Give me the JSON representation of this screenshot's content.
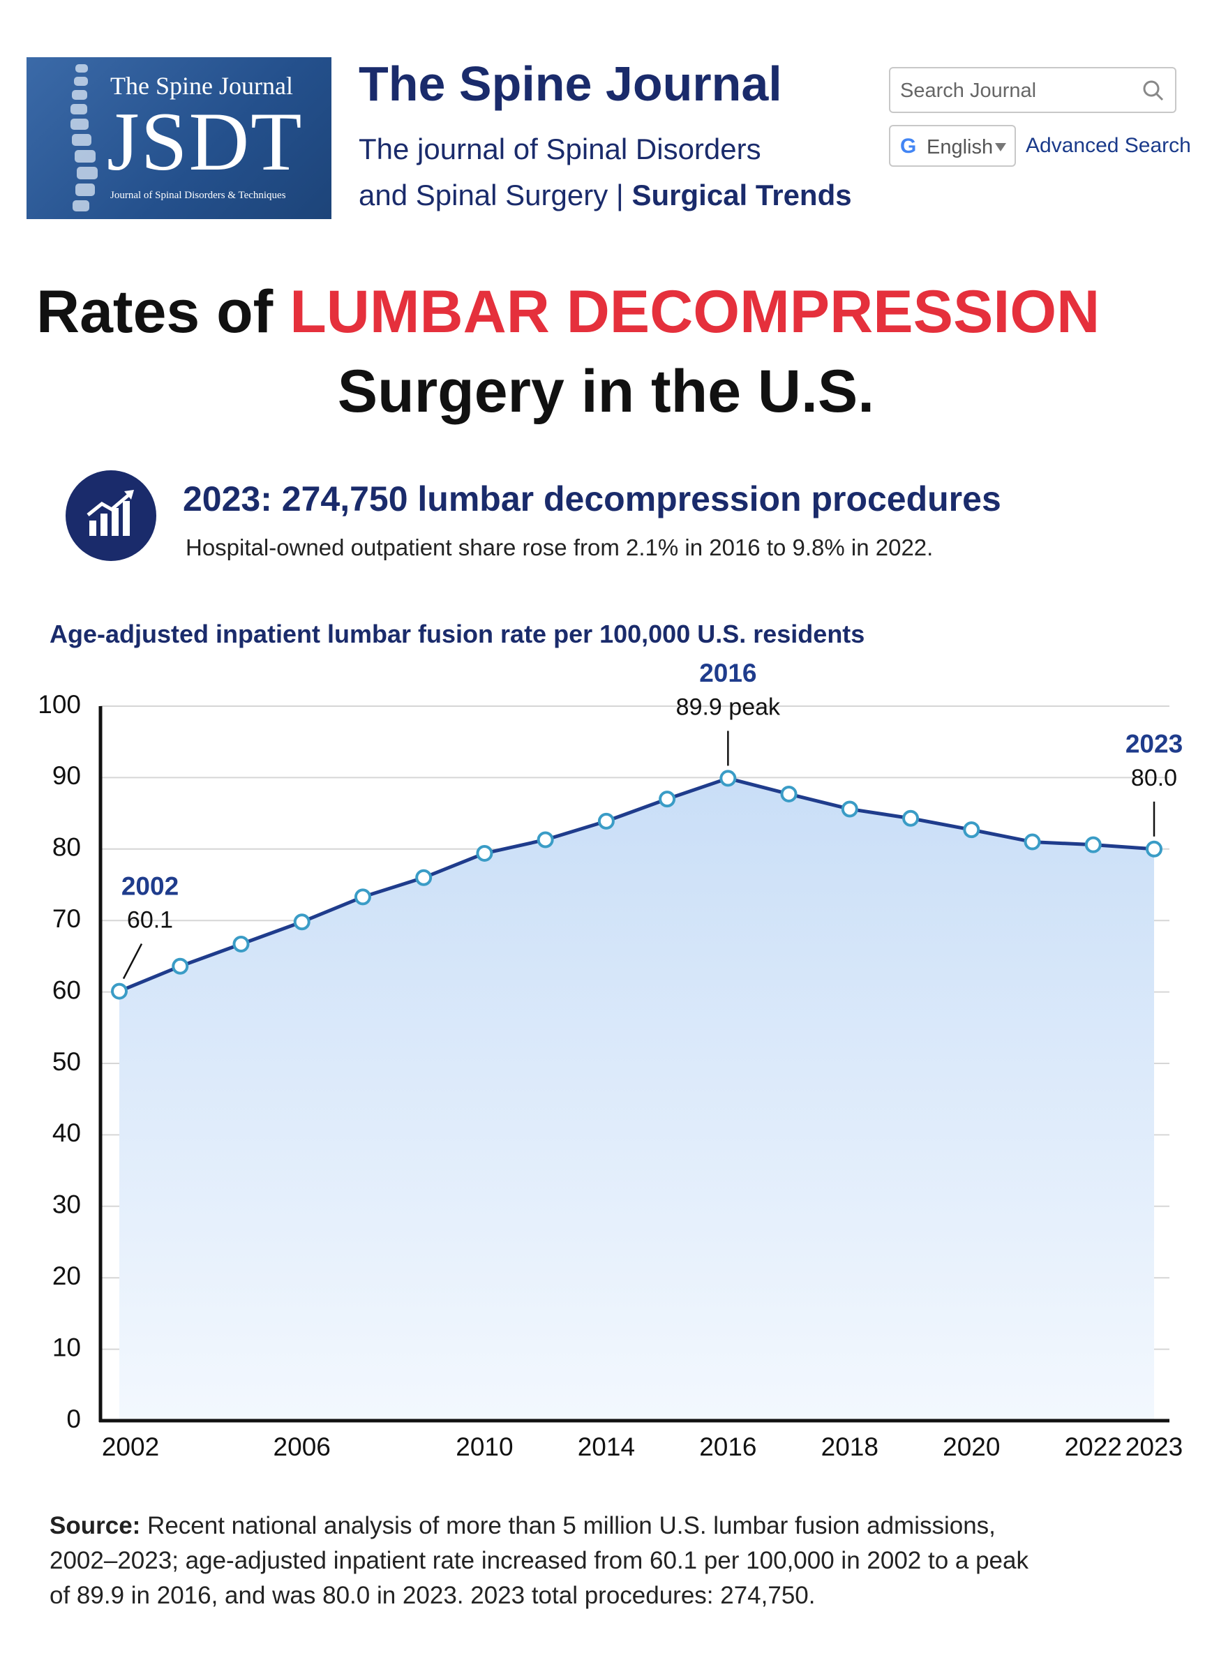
{
  "header": {
    "logo_top": "The Spine Journal",
    "logo_main": "JSDT",
    "logo_sub": "Journal of Spinal Disorders & Techniques",
    "title": "The Spine Journal",
    "subtitle_line1": "The journal of Spinal Disorders",
    "subtitle_line2": "and Spinal Surgery",
    "separator": "|",
    "section": "Surgical Trends",
    "search_placeholder": "Search Journal",
    "google_icon": "G",
    "language": "English",
    "advanced_search": "Advanced Search"
  },
  "headline": {
    "title_start": "Rates of",
    "title_highlight": "LUMBAR DECOMPRESSION",
    "title_end": "Surgery in the U.S.",
    "stat": "2023: 274,750 lumbar decompression procedures",
    "stat_note": "Hospital-owned outpatient share rose from 2.1% in 2016 to 9.8% in 2022."
  },
  "chart_data": {
    "type": "area",
    "title": "Age-adjusted inpatient lumbar fusion rate per 100,000 U.S. residents",
    "categories": [
      "2002",
      null,
      null,
      "2006",
      null,
      null,
      "2010",
      null,
      "2014",
      null,
      "2016",
      null,
      "2018",
      null,
      "2020",
      null,
      "2022",
      "2023"
    ],
    "values": [
      60.1,
      63.6,
      66.7,
      69.8,
      73.3,
      76.0,
      79.4,
      81.3,
      83.9,
      87.0,
      89.9,
      87.7,
      85.6,
      84.3,
      82.7,
      81.0,
      80.6,
      80.0
    ],
    "point_labels": [
      "2002",
      null,
      null,
      null,
      null,
      null,
      null,
      null,
      null,
      null,
      "2016",
      null,
      null,
      null,
      null,
      null,
      null,
      "2023"
    ],
    "value_labels": [
      "60.1",
      null,
      null,
      null,
      null,
      null,
      null,
      null,
      null,
      null,
      "89.9 peak",
      null,
      null,
      null,
      null,
      null,
      null,
      "80.0"
    ],
    "color": "#1f3c8c",
    "marker_color": "#3a9cc6",
    "fill_color": "#c9def7",
    "ylim": [
      0,
      100
    ],
    "yticks": [
      0,
      10,
      20,
      30,
      40,
      50,
      60,
      70,
      80,
      90,
      100
    ],
    "grid": true
  },
  "source": {
    "label": "Source:",
    "text": "Recent national analysis of more than 5 million U.S. lumbar fusion admissions, 2002–2023; age-adjusted inpatient rate increased from 60.1 per 100,000 in 2002 to a peak of 89.9 in 2016, and was 80.0 in 2023. 2023 total procedures: 274,750."
  }
}
